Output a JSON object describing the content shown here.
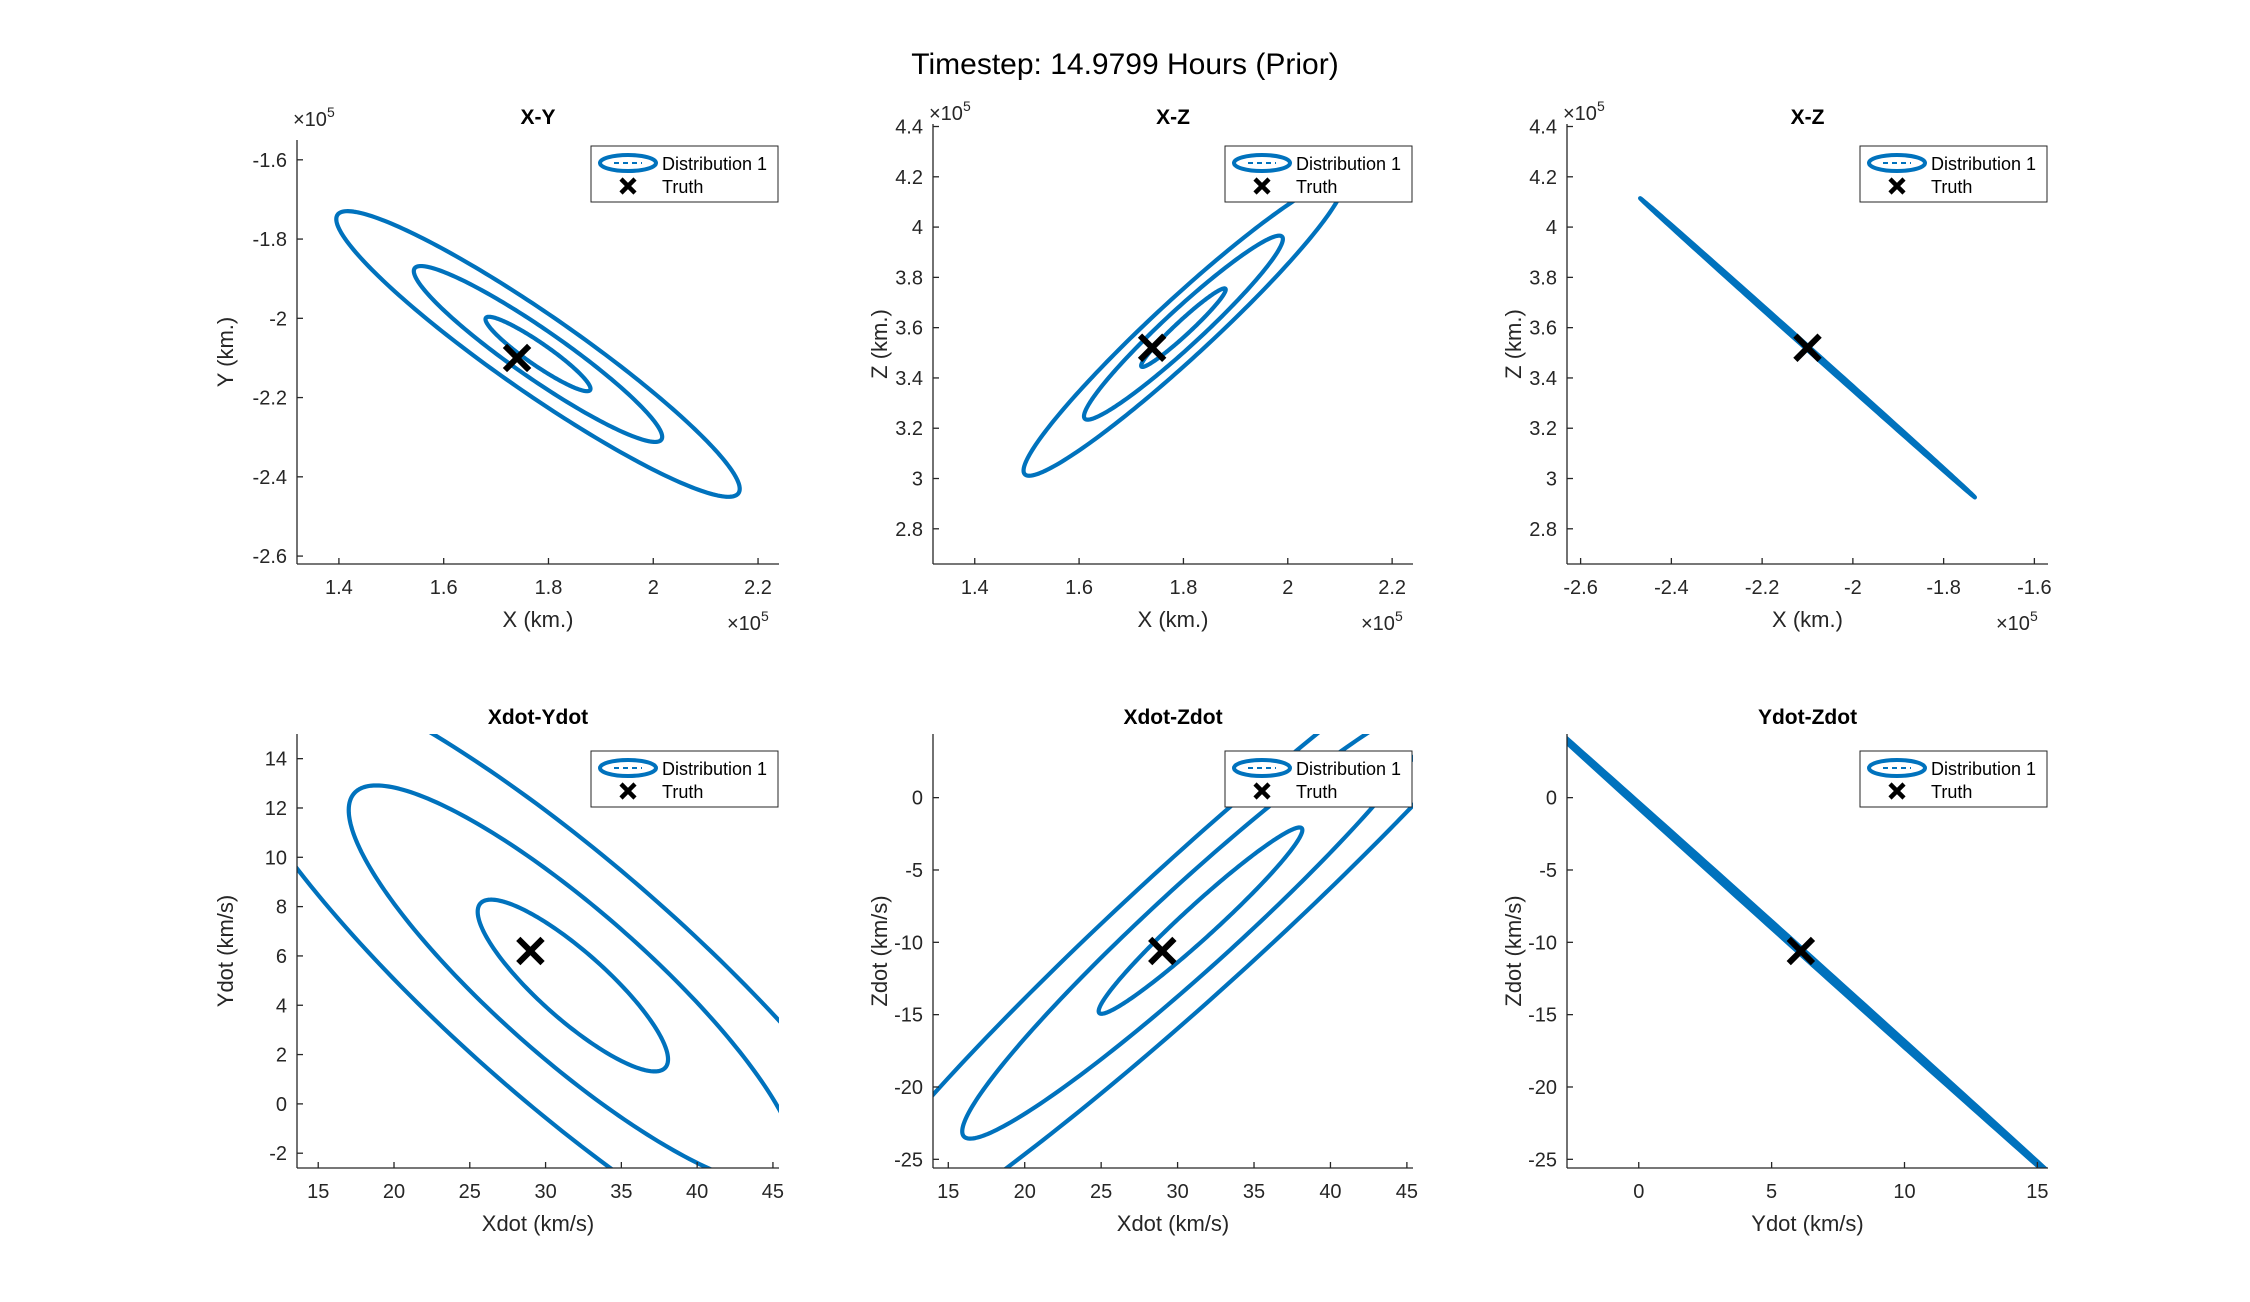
{
  "figure": {
    "title": "Timestep: 14.9799 Hours (Prior)"
  },
  "colors": {
    "series": "#0072BD",
    "truth": "#000000",
    "axis": "#262626"
  },
  "legend": {
    "series_label": "Distribution 1",
    "truth_label": "Truth",
    "placement": "top-right"
  },
  "chart_data": [
    {
      "type": "line",
      "title": "X-Y",
      "xlabel": "X (km.)",
      "ylabel": "Y (km.)",
      "xlim": [
        132000,
        224000
      ],
      "ylim": [
        -262000,
        -155000
      ],
      "xticks": [
        140000,
        160000,
        180000,
        200000,
        220000
      ],
      "xticklabels": [
        "1.4",
        "1.6",
        "1.8",
        "2",
        "2.2"
      ],
      "yticks": [
        -260000,
        -240000,
        -220000,
        -200000,
        -180000,
        -160000
      ],
      "yticklabels": [
        "-2.6",
        "-2.4",
        "-2.2",
        "-2",
        "-1.8",
        "-1.6"
      ],
      "x_exponent": "×10^5",
      "y_exponent": "×10^5",
      "center": [
        178000,
        -209000
      ],
      "ellipses": [
        [
          13500,
          2500,
          -43
        ],
        [
          32000,
          5500,
          -43
        ],
        [
          52000,
          8800,
          -43
        ]
      ],
      "truth": [
        174000,
        -210000
      ],
      "series": [
        {
          "name": "Distribution 1"
        }
      ]
    },
    {
      "type": "line",
      "title": "X-Z",
      "xlabel": "X (km.)",
      "ylabel": "Z (km.)",
      "xlim": [
        132000,
        224000
      ],
      "ylim": [
        266000,
        441000
      ],
      "xticks": [
        140000,
        160000,
        180000,
        200000,
        220000
      ],
      "xticklabels": [
        "1.4",
        "1.6",
        "1.8",
        "2",
        "2.2"
      ],
      "yticks": [
        280000,
        300000,
        320000,
        340000,
        360000,
        380000,
        400000,
        420000,
        440000
      ],
      "yticklabels": [
        "2.8",
        "3",
        "3.2",
        "3.4",
        "3.6",
        "3.8",
        "4",
        "4.2",
        "4.4"
      ],
      "x_exponent": "×10^5",
      "y_exponent": "×10^5",
      "center": [
        180000,
        360000
      ],
      "ellipses": [
        [
          17500,
          1800,
          63
        ],
        [
          41000,
          4600,
          63
        ],
        [
          66000,
          7200,
          63
        ]
      ],
      "truth": [
        174000,
        352000
      ],
      "series": [
        {
          "name": "Distribution 1"
        }
      ]
    },
    {
      "type": "line",
      "title": "X-Z",
      "xlabel": "X (km.)",
      "ylabel": "Z (km.)",
      "xlim": [
        -263000,
        -157000
      ],
      "ylim": [
        266000,
        441000
      ],
      "xticks": [
        -260000,
        -240000,
        -220000,
        -200000,
        -180000,
        -160000
      ],
      "xticklabels": [
        "-2.6",
        "-2.4",
        "-2.2",
        "-2",
        "-1.8",
        "-1.6"
      ],
      "yticks": [
        280000,
        300000,
        320000,
        340000,
        360000,
        380000,
        400000,
        420000,
        440000
      ],
      "yticklabels": [
        "2.8",
        "3",
        "3.2",
        "3.4",
        "3.6",
        "3.8",
        "4",
        "4.2",
        "4.4"
      ],
      "x_exponent": "×10^5",
      "y_exponent": "×10^5",
      "center": [
        -210000,
        352000
      ],
      "ellipses": [
        [
          19000,
          180,
          -58.2
        ],
        [
          44000,
          340,
          -58.2
        ],
        [
          70000,
          480,
          -58.2
        ]
      ],
      "truth": [
        -210000,
        352000
      ],
      "series": [
        {
          "name": "Distribution 1"
        }
      ]
    },
    {
      "type": "line",
      "title": "Xdot-Ydot",
      "xlabel": "Xdot (km/s)",
      "ylabel": "Ydot (km/s)",
      "xlim": [
        13.6,
        45.4
      ],
      "ylim": [
        -2.6,
        15
      ],
      "xticks": [
        15,
        20,
        25,
        30,
        35,
        40,
        45
      ],
      "xticklabels": [
        "15",
        "20",
        "25",
        "30",
        "35",
        "40",
        "45"
      ],
      "yticks": [
        -2,
        0,
        2,
        4,
        6,
        8,
        10,
        12,
        14
      ],
      "yticklabels": [
        "-2",
        "0",
        "2",
        "4",
        "6",
        "8",
        "10",
        "12",
        "14"
      ],
      "x_exponent": "",
      "y_exponent": "",
      "center": [
        31.8,
        4.8
      ],
      "ellipses": [
        [
          7.0,
          1.6,
          -27
        ],
        [
          16.5,
          3.5,
          -27
        ],
        [
          26.5,
          5.6,
          -27
        ]
      ],
      "truth": [
        29,
        6.2
      ],
      "series": [
        {
          "name": "Distribution 1"
        }
      ]
    },
    {
      "type": "line",
      "title": "Xdot-Zdot",
      "xlabel": "Xdot (km/s)",
      "ylabel": "Zdot (km/s)",
      "xlim": [
        14,
        45.4
      ],
      "ylim": [
        -25.6,
        4.4
      ],
      "xticks": [
        15,
        20,
        25,
        30,
        35,
        40,
        45
      ],
      "xticklabels": [
        "15",
        "20",
        "25",
        "30",
        "35",
        "40",
        "45"
      ],
      "yticks": [
        -25,
        -20,
        -15,
        -10,
        -5,
        0
      ],
      "yticklabels": [
        "-25",
        "-20",
        "-15",
        "-10",
        "-5",
        "0"
      ],
      "x_exponent": "",
      "y_exponent": "",
      "center": [
        31.5,
        -8.5
      ],
      "ellipses": [
        [
          9.2,
          1.1,
          44
        ],
        [
          21.5,
          2.8,
          44
        ],
        [
          34.5,
          4.4,
          44
        ]
      ],
      "truth": [
        29,
        -10.6
      ],
      "series": [
        {
          "name": "Distribution 1"
        }
      ]
    },
    {
      "type": "line",
      "title": "Ydot-Zdot",
      "xlabel": "Ydot (km/s)",
      "ylabel": "Zdot (km/s)",
      "xlim": [
        -2.7,
        15.4
      ],
      "ylim": [
        -25.6,
        4.4
      ],
      "xticks": [
        0,
        5,
        10,
        15
      ],
      "xticklabels": [
        "0",
        "5",
        "10",
        "15"
      ],
      "yticks": [
        -25,
        -20,
        -15,
        -10,
        -5,
        0
      ],
      "yticklabels": [
        "-25",
        "-20",
        "-15",
        "-10",
        "-5",
        "0"
      ],
      "x_exponent": "",
      "y_exponent": "",
      "center": [
        6.1,
        -10.6
      ],
      "ellipses": [
        [
          6.0,
          0.05,
          -58.8
        ],
        [
          13.5,
          0.09,
          -58.8
        ],
        [
          21.5,
          0.13,
          -58.8
        ]
      ],
      "truth": [
        6.1,
        -10.6
      ],
      "series": [
        {
          "name": "Distribution 1"
        }
      ]
    }
  ]
}
